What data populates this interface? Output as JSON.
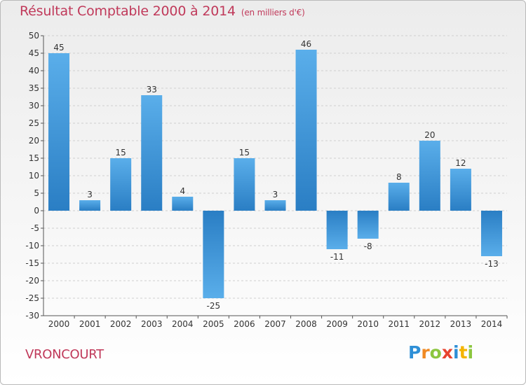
{
  "title": "Résultat Comptable 2000 à 2014",
  "subtitle": "(en milliers d'€)",
  "commune": "VRONCOURT",
  "logo": {
    "text": "Proxiti",
    "letters": [
      {
        "ch": "P",
        "color": "#2e8fd6"
      },
      {
        "ch": "r",
        "color": "#f08a24"
      },
      {
        "ch": "o",
        "color": "#8cc63f"
      },
      {
        "ch": "x",
        "color": "#e8432e"
      },
      {
        "ch": "i",
        "color": "#2e8fd6"
      },
      {
        "ch": "t",
        "color": "#f4b400"
      },
      {
        "ch": "i",
        "color": "#8cc63f"
      }
    ]
  },
  "colors": {
    "title": "#c0395a",
    "bar_light": "#5aaeea",
    "bar_dark": "#2a7ec4",
    "grid": "#cfcfcf",
    "axis_text": "#333333"
  },
  "chart_data": {
    "type": "bar",
    "title": "Résultat Comptable 2000 à 2014",
    "subtitle": "(en milliers d'€)",
    "xlabel": "",
    "ylabel": "",
    "categories": [
      "2000",
      "2001",
      "2002",
      "2003",
      "2004",
      "2005",
      "2006",
      "2007",
      "2008",
      "2009",
      "2010",
      "2011",
      "2012",
      "2013",
      "2014"
    ],
    "values": [
      45,
      3,
      15,
      33,
      4,
      -25,
      15,
      3,
      46,
      -11,
      -8,
      8,
      20,
      12,
      -13
    ],
    "labels": [
      "45",
      "3",
      "15",
      "33",
      "4",
      "-25",
      "15",
      "3",
      "46",
      "-11",
      "-8",
      "8",
      "20",
      "12",
      "-13"
    ],
    "ylim": [
      -30,
      50
    ],
    "yticks": [
      50,
      45,
      40,
      35,
      30,
      25,
      20,
      15,
      10,
      5,
      0,
      -5,
      -10,
      -15,
      -20,
      -25,
      -30
    ],
    "ytick_labels": [
      "50",
      "45",
      "40",
      "35",
      "30",
      "25",
      "20",
      "15",
      "10",
      "5",
      "0",
      "-5",
      "-10",
      "-15",
      "-20",
      "-25",
      "-30"
    ],
    "grid": true
  }
}
